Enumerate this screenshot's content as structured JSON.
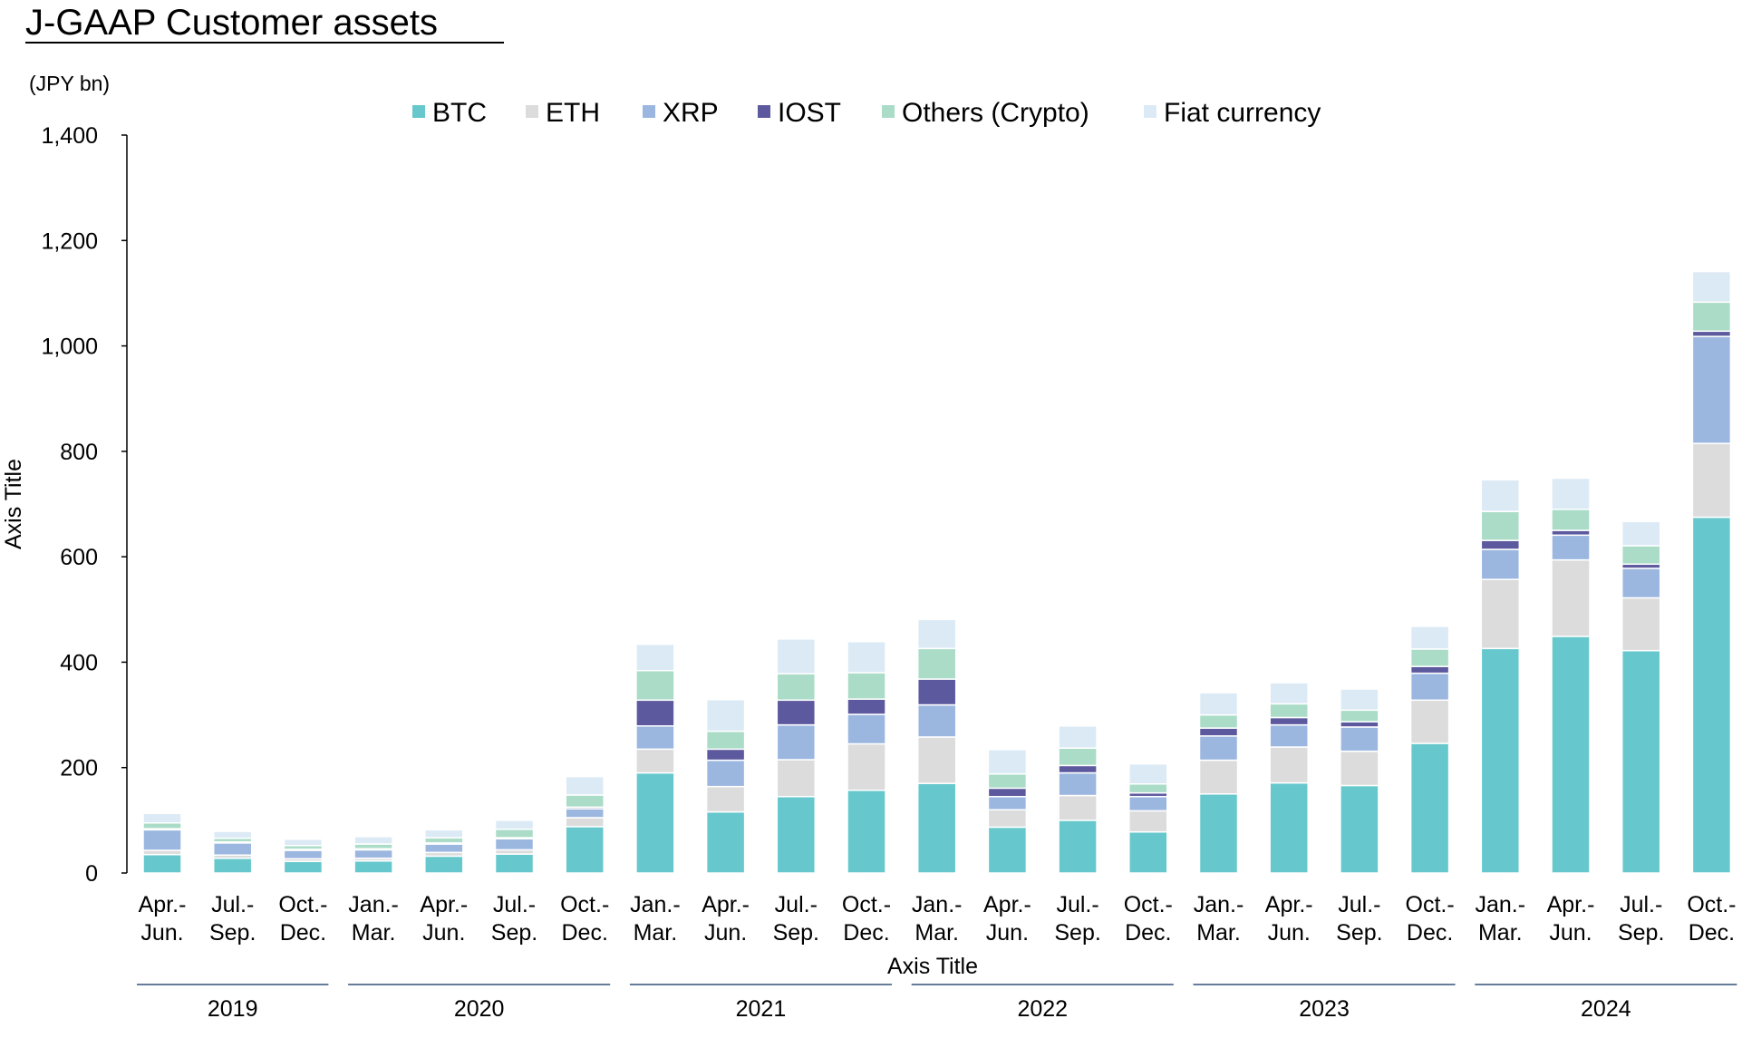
{
  "chart_data": {
    "type": "bar",
    "stacked": true,
    "title": "J-GAAP Customer assets",
    "unit": "(JPY bn)",
    "xlabel": "Axis Title",
    "ylabel": "Axis Title",
    "ylim": [
      0,
      1400
    ],
    "yticks": [
      0,
      200,
      400,
      600,
      800,
      1000,
      1200,
      1400
    ],
    "ytick_labels": [
      "0",
      "200",
      "400",
      "600",
      "800",
      "1,000",
      "1,200",
      "1,400"
    ],
    "legend_position": "top",
    "grid": false,
    "categories": [
      [
        "Apr.-",
        "Jun."
      ],
      [
        "Jul.-",
        "Sep."
      ],
      [
        "Oct.-",
        "Dec."
      ],
      [
        "Jan.-",
        "Mar."
      ],
      [
        "Apr.-",
        "Jun."
      ],
      [
        "Jul.-",
        "Sep."
      ],
      [
        "Oct.-",
        "Dec."
      ],
      [
        "Jan.-",
        "Mar."
      ],
      [
        "Apr.-",
        "Jun."
      ],
      [
        "Jul.-",
        "Sep."
      ],
      [
        "Oct.-",
        "Dec."
      ],
      [
        "Jan.-",
        "Mar."
      ],
      [
        "Apr.-",
        "Jun."
      ],
      [
        "Jul.-",
        "Sep."
      ],
      [
        "Oct.-",
        "Dec."
      ],
      [
        "Jan.-",
        "Mar."
      ],
      [
        "Apr.-",
        "Jun."
      ],
      [
        "Jul.-",
        "Sep."
      ],
      [
        "Oct.-",
        "Dec."
      ],
      [
        "Jan.-",
        "Mar."
      ],
      [
        "Apr.-",
        "Jun."
      ],
      [
        "Jul.-",
        "Sep."
      ],
      [
        "Oct.-",
        "Dec."
      ]
    ],
    "year_groups": [
      {
        "label": "2019",
        "start": 0,
        "end": 2
      },
      {
        "label": "2020",
        "start": 3,
        "end": 6
      },
      {
        "label": "2021",
        "start": 7,
        "end": 10
      },
      {
        "label": "2022",
        "start": 11,
        "end": 14
      },
      {
        "label": "2023",
        "start": 15,
        "end": 18
      },
      {
        "label": "2024",
        "start": 19,
        "end": 22
      }
    ],
    "series": [
      {
        "name": "BTC",
        "color": "#66c8cc",
        "values": [
          35,
          28,
          22,
          23,
          32,
          36,
          88,
          190,
          116,
          145,
          157,
          170,
          87,
          100,
          78,
          150,
          171,
          166,
          246,
          426,
          449,
          422,
          675
        ]
      },
      {
        "name": "ETH",
        "color": "#dcdcdc",
        "values": [
          8,
          6,
          5,
          5,
          7,
          8,
          17,
          45,
          48,
          70,
          88,
          88,
          33,
          47,
          40,
          64,
          68,
          65,
          82,
          131,
          145,
          100,
          140
        ]
      },
      {
        "name": "XRP",
        "color": "#9bb7e0",
        "values": [
          39,
          23,
          16,
          16,
          16,
          21,
          17,
          44,
          50,
          66,
          56,
          61,
          25,
          43,
          27,
          46,
          42,
          46,
          51,
          57,
          47,
          56,
          203
        ]
      },
      {
        "name": "IOST",
        "color": "#5d599f",
        "values": [
          2,
          2,
          2,
          2,
          2,
          2,
          3,
          49,
          21,
          47,
          29,
          49,
          16,
          14,
          7,
          15,
          14,
          10,
          13,
          17,
          9,
          8,
          10
        ]
      },
      {
        "name": "Others (Crypto)",
        "color": "#aadcc8",
        "values": [
          11,
          7,
          7,
          9,
          10,
          16,
          23,
          56,
          34,
          50,
          50,
          58,
          27,
          33,
          17,
          25,
          26,
          22,
          33,
          55,
          40,
          35,
          55
        ]
      },
      {
        "name": "Fiat currency",
        "color": "#dceaf6",
        "values": [
          18,
          13,
          12,
          14,
          15,
          17,
          35,
          50,
          60,
          66,
          59,
          55,
          46,
          42,
          38,
          42,
          40,
          40,
          43,
          60,
          59,
          46,
          58
        ]
      }
    ]
  }
}
